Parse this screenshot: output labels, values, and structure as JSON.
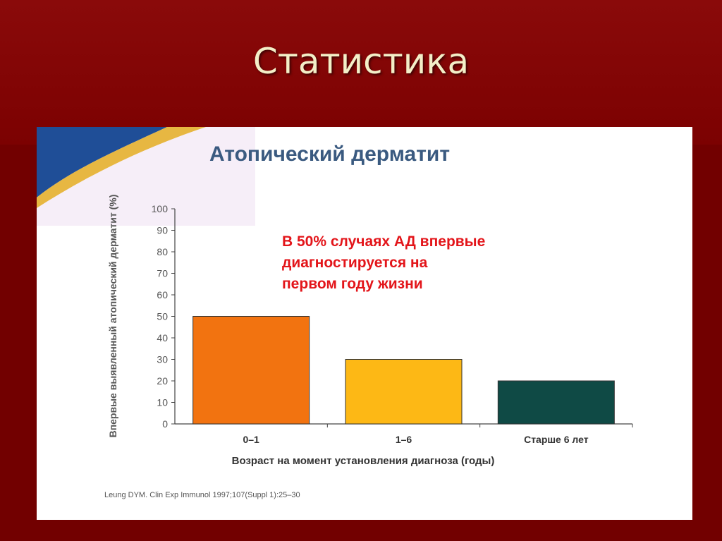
{
  "slide": {
    "title": "Статистика"
  },
  "chart_data": {
    "type": "bar",
    "title": "Атопический дерматит",
    "categories": [
      "0–1",
      "1–6",
      "Старше 6 лет"
    ],
    "values": [
      50,
      30,
      20
    ],
    "colors": [
      "#f27310",
      "#fdb815",
      "#0f4a45"
    ],
    "ylabel": "Впервые выявленный атопический дерматит (%)",
    "xlabel": "Возраст на момент установления диагноза (годы)",
    "ylim": [
      0,
      100
    ],
    "yticks": [
      0,
      10,
      20,
      30,
      40,
      50,
      60,
      70,
      80,
      90,
      100
    ],
    "annotation": [
      "В 50% случаях АД впервые",
      "диагностируется на",
      "первом году жизни"
    ],
    "source": "Leung DYM. Clin Exp Immunol 1997;107(Suppl 1):25–30",
    "grid": false,
    "legend": "none"
  }
}
